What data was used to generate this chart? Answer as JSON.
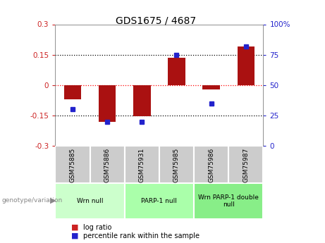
{
  "title": "GDS1675 / 4687",
  "samples": [
    "GSM75885",
    "GSM75886",
    "GSM75931",
    "GSM75985",
    "GSM75986",
    "GSM75987"
  ],
  "log_ratio": [
    -0.07,
    -0.18,
    -0.155,
    0.135,
    -0.02,
    0.19
  ],
  "percentile_rank": [
    30,
    20,
    20,
    75,
    35,
    82
  ],
  "ylim_left": [
    -0.3,
    0.3
  ],
  "ylim_right": [
    0,
    100
  ],
  "yticks_left": [
    -0.3,
    -0.15,
    0,
    0.15,
    0.3
  ],
  "yticks_right": [
    0,
    25,
    50,
    75,
    100
  ],
  "hlines_black": [
    -0.15,
    0.15
  ],
  "hline_red": 0,
  "bar_color": "#aa1111",
  "dot_color": "#2222cc",
  "bar_width": 0.5,
  "groups": [
    {
      "label": "Wrn null",
      "samples": [
        0,
        1
      ],
      "color": "#ccffcc"
    },
    {
      "label": "PARP-1 null",
      "samples": [
        2,
        3
      ],
      "color": "#aaffaa"
    },
    {
      "label": "Wrn PARP-1 double\nnull",
      "samples": [
        4,
        5
      ],
      "color": "#88ee88"
    }
  ],
  "group_bg_color": "#cccccc",
  "legend_log_ratio_color": "#cc2222",
  "legend_percentile_color": "#2222cc",
  "left_label_color": "#cc2222",
  "right_label_color": "#2222cc",
  "dot_size": 5
}
